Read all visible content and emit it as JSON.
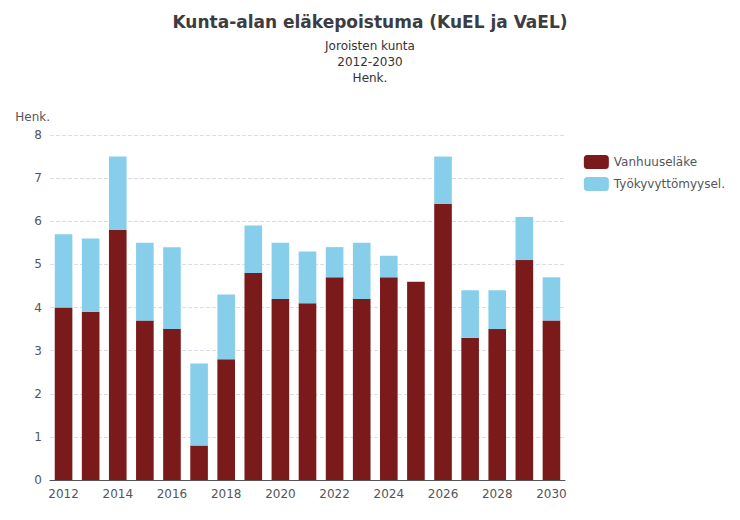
{
  "chart_data": {
    "type": "bar",
    "title": "Kunta-alan eläkepoistuma (KuEL ja VaEL)",
    "subtitle": [
      "Joroisten kunta",
      "2012-2030",
      "Henk."
    ],
    "ylabel": "Henk.",
    "categories": [
      "2012",
      null,
      "2014",
      null,
      "2016",
      null,
      "2018",
      null,
      "2020",
      null,
      "2022",
      null,
      "2024",
      null,
      "2026",
      null,
      "2028",
      null,
      "2030"
    ],
    "series": [
      {
        "name": "Vanhuuseläke",
        "color": "#7B1A1A",
        "values": [
          4.0,
          3.9,
          5.8,
          3.7,
          3.5,
          0.8,
          2.8,
          4.8,
          4.2,
          4.1,
          4.7,
          4.2,
          4.7,
          4.6,
          6.4,
          3.3,
          3.5,
          5.1,
          3.7
        ]
      },
      {
        "name": "Työkyvyttömyysel.",
        "color": "#87CEEB",
        "values": [
          1.7,
          1.7,
          1.7,
          1.8,
          1.9,
          1.9,
          1.5,
          1.1,
          1.3,
          1.2,
          0.7,
          1.3,
          0.5,
          0.0,
          1.1,
          1.1,
          0.9,
          1.0,
          1.0
        ]
      }
    ],
    "stacked": true,
    "ylim": [
      0,
      8
    ],
    "yticks": [
      0,
      1,
      2,
      3,
      4,
      5,
      6,
      7,
      8
    ],
    "grid": true,
    "legend": "right"
  }
}
